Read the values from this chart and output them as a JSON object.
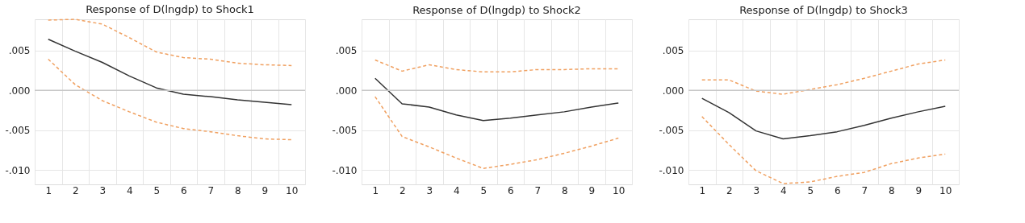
{
  "chart_data": [
    {
      "type": "line",
      "title": "Response of D(lngdp) to Shock1",
      "categories": [
        "1",
        "2",
        "3",
        "4",
        "5",
        "6",
        "7",
        "8",
        "9",
        "10"
      ],
      "series": [
        {
          "color": "#333333",
          "line_style": "solid",
          "values": [
            0.0064,
            0.0049,
            0.0035,
            0.0018,
            0.0003,
            -0.0005,
            -0.0008,
            -0.0012,
            -0.0015,
            -0.0018
          ]
        },
        {
          "color": "#f0a060",
          "line_style": "dashed",
          "values": [
            0.0088,
            0.0089,
            0.0083,
            0.0066,
            0.0048,
            0.0041,
            0.0039,
            0.0034,
            0.0032,
            0.0031
          ]
        },
        {
          "color": "#f0a060",
          "line_style": "dashed",
          "values": [
            0.0039,
            0.0007,
            -0.0013,
            -0.0027,
            -0.004,
            -0.0048,
            -0.0052,
            -0.0057,
            -0.0061,
            -0.0062
          ]
        }
      ],
      "ylim": [
        -0.0118,
        0.0089
      ],
      "yticks": [
        {
          "value": 0.005,
          "label": ".005"
        },
        {
          "value": 0.0,
          "label": ".000"
        },
        {
          "value": -0.005,
          "label": "-.005"
        },
        {
          "value": -0.01,
          "label": "-.010"
        }
      ],
      "grid": true,
      "ref_lines": [
        {
          "axis": "y",
          "value": 0,
          "color": "#c8c8c8"
        }
      ]
    },
    {
      "type": "line",
      "title": "Response of D(lngdp) to Shock2",
      "categories": [
        "1",
        "2",
        "3",
        "4",
        "5",
        "6",
        "7",
        "8",
        "9",
        "10"
      ],
      "series": [
        {
          "color": "#333333",
          "line_style": "solid",
          "values": [
            0.0015,
            -0.0017,
            -0.0021,
            -0.0031,
            -0.0038,
            -0.0035,
            -0.0031,
            -0.0027,
            -0.0021,
            -0.0016
          ]
        },
        {
          "color": "#f0a060",
          "line_style": "dashed",
          "values": [
            0.0038,
            0.0024,
            0.0032,
            0.0026,
            0.0023,
            0.0023,
            0.0026,
            0.0026,
            0.0027,
            0.0027
          ]
        },
        {
          "color": "#f0a060",
          "line_style": "dashed",
          "values": [
            -0.0008,
            -0.0058,
            -0.0071,
            -0.0085,
            -0.0098,
            -0.0093,
            -0.0087,
            -0.0079,
            -0.007,
            -0.006
          ]
        }
      ],
      "ylim": [
        -0.0118,
        0.0089
      ],
      "yticks": [
        {
          "value": 0.005,
          "label": ".005"
        },
        {
          "value": 0.0,
          "label": ".000"
        },
        {
          "value": -0.005,
          "label": "-.005"
        },
        {
          "value": -0.01,
          "label": "-.010"
        }
      ],
      "grid": true,
      "ref_lines": [
        {
          "axis": "y",
          "value": 0,
          "color": "#c8c8c8"
        }
      ]
    },
    {
      "type": "line",
      "title": "Response of D(lngdp) to Shock3",
      "categories": [
        "1",
        "2",
        "3",
        "4",
        "5",
        "6",
        "7",
        "8",
        "9",
        "10"
      ],
      "series": [
        {
          "color": "#333333",
          "line_style": "solid",
          "values": [
            -0.001,
            -0.0028,
            -0.0051,
            -0.0061,
            -0.0057,
            -0.0052,
            -0.0044,
            -0.0035,
            -0.0027,
            -0.002
          ]
        },
        {
          "color": "#f0a060",
          "line_style": "dashed",
          "values": [
            0.0013,
            0.0013,
            -0.0001,
            -0.0005,
            0.0001,
            0.0007,
            0.0015,
            0.0024,
            0.0033,
            0.0038
          ]
        },
        {
          "color": "#f0a060",
          "line_style": "dashed",
          "values": [
            -0.0033,
            -0.0068,
            -0.0101,
            -0.0117,
            -0.0115,
            -0.0108,
            -0.0103,
            -0.0092,
            -0.0085,
            -0.008
          ]
        }
      ],
      "ylim": [
        -0.0118,
        0.0089
      ],
      "yticks": [
        {
          "value": 0.005,
          "label": ".005"
        },
        {
          "value": 0.0,
          "label": ".000"
        },
        {
          "value": -0.005,
          "label": "-.005"
        },
        {
          "value": -0.01,
          "label": "-.010"
        }
      ],
      "grid": true,
      "ref_lines": [
        {
          "axis": "y",
          "value": 0,
          "color": "#c8c8c8"
        }
      ]
    }
  ]
}
